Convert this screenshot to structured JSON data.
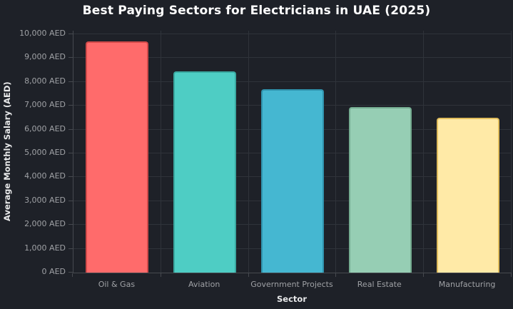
{
  "chart_data": {
    "type": "bar",
    "title": "Best Paying Sectors for Electricians in UAE (2025)",
    "xlabel": "Sector",
    "ylabel": "Average Monthly Salary (AED)",
    "categories": [
      "Oil & Gas",
      "Aviation",
      "Government Projects",
      "Real Estate",
      "Manufacturing"
    ],
    "values": [
      9700,
      8450,
      7700,
      6950,
      6500
    ],
    "unit": "AED",
    "ylim": [
      0,
      10000
    ],
    "ytick_step": 1000,
    "ytick_labels": [
      "0 AED",
      "1,000 AED",
      "2,000 AED",
      "3,000 AED",
      "4,000 AED",
      "5,000 AED",
      "6,000 AED",
      "7,000 AED",
      "8,000 AED",
      "9,000 AED",
      "10,000 AED"
    ],
    "grid": true,
    "legend": false,
    "bar_colors": [
      "#FF6B6B",
      "#4ECDC4",
      "#45B7D1",
      "#96CEB4",
      "#FFEAA7"
    ],
    "bar_border_colors": [
      "#d14a4a",
      "#3aa8a0",
      "#3093ad",
      "#74ab90",
      "#e0bd5c"
    ],
    "colors": {
      "background": "#1e2128",
      "grid": "#2f333a",
      "spine": "#46494f",
      "tick_label": "#9fa1a5",
      "title": "#ffffff",
      "axis_label": "#e8e9ea"
    }
  }
}
